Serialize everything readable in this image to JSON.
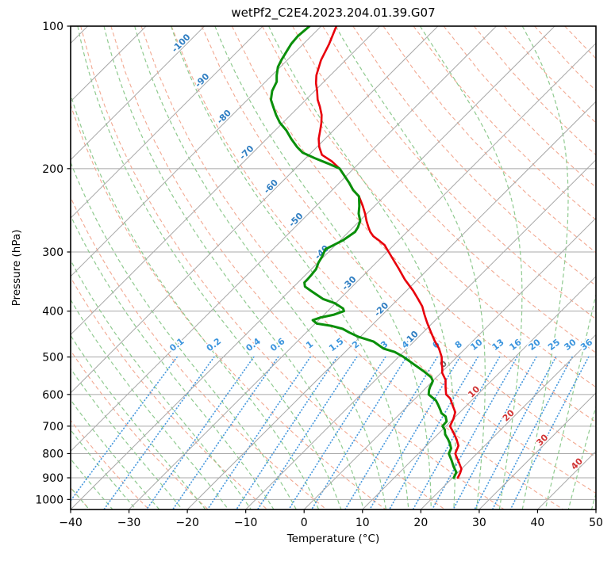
{
  "title": "wetPf2_C2E4.2023.204.01.39.G07",
  "axes": {
    "x": {
      "label": "Temperature (°C)",
      "ticks": [
        -40,
        -30,
        -20,
        -10,
        0,
        10,
        20,
        30,
        40,
        50
      ],
      "min": -40,
      "max": 50
    },
    "y": {
      "label": "Pressure (hPa)",
      "ticks": [
        100,
        200,
        300,
        400,
        500,
        600,
        700,
        800,
        900,
        1000
      ],
      "min": 100,
      "max": 1050,
      "scale": "log"
    }
  },
  "colors": {
    "frame": "#000000",
    "grid": "#a8a8a8",
    "isotherm": "#a8a8a8",
    "dry_adiabat": "#f2a891",
    "moist_adiabat": "#8fca8f",
    "mixing_line": "#4a9ade",
    "temperature": "#e8000b",
    "dewpoint": "#0a8f0a",
    "isotherm_label_neg": "#2f7ec2",
    "isotherm_label_zero": "#6f6f6f",
    "isotherm_label_pos": "#d03434",
    "mixing_label": "#3c95dd"
  },
  "chart_data": {
    "type": "line",
    "subtype": "skewT-logP",
    "title": "wetPf2_C2E4.2023.204.01.39.G07",
    "xlabel": "Temperature (°C)",
    "ylabel": "Pressure (hPa)",
    "xlim": [
      -40,
      50
    ],
    "ylim": [
      1050,
      100
    ],
    "skew_deg": 45,
    "series": [
      {
        "name": "temperature",
        "units": [
          "hPa",
          "degC"
        ],
        "points": [
          [
            100,
            -77.4
          ],
          [
            109,
            -75.6
          ],
          [
            118,
            -74.2
          ],
          [
            127,
            -72.4
          ],
          [
            132,
            -71.1
          ],
          [
            137,
            -69.6
          ],
          [
            143,
            -68.0
          ],
          [
            148,
            -66.4
          ],
          [
            154,
            -64.7
          ],
          [
            160,
            -63.4
          ],
          [
            166,
            -62.3
          ],
          [
            173,
            -61.1
          ],
          [
            180,
            -59.6
          ],
          [
            187,
            -57.8
          ],
          [
            193,
            -55.0
          ],
          [
            200,
            -52.4
          ],
          [
            214,
            -48.4
          ],
          [
            222,
            -46.4
          ],
          [
            229,
            -44.3
          ],
          [
            240,
            -42.0
          ],
          [
            249,
            -40.3
          ],
          [
            258,
            -38.8
          ],
          [
            266,
            -37.4
          ],
          [
            272,
            -36.3
          ],
          [
            278,
            -35.0
          ],
          [
            283,
            -33.5
          ],
          [
            290,
            -31.6
          ],
          [
            300,
            -29.7
          ],
          [
            313,
            -27.3
          ],
          [
            326,
            -25.0
          ],
          [
            343,
            -22.2
          ],
          [
            362,
            -18.9
          ],
          [
            377,
            -16.6
          ],
          [
            391,
            -14.6
          ],
          [
            407,
            -12.8
          ],
          [
            423,
            -11.0
          ],
          [
            444,
            -8.6
          ],
          [
            462,
            -6.6
          ],
          [
            480,
            -4.5
          ],
          [
            500,
            -2.6
          ],
          [
            517,
            -1.4
          ],
          [
            529,
            -0.5
          ],
          [
            540,
            0.2
          ],
          [
            559,
            2.0
          ],
          [
            580,
            3.3
          ],
          [
            600,
            4.6
          ],
          [
            612,
            6.0
          ],
          [
            633,
            7.6
          ],
          [
            654,
            9.2
          ],
          [
            675,
            10.0
          ],
          [
            700,
            10.7
          ],
          [
            721,
            12.3
          ],
          [
            745,
            14.0
          ],
          [
            770,
            15.5
          ],
          [
            800,
            16.3
          ],
          [
            818,
            17.4
          ],
          [
            836,
            18.5
          ],
          [
            862,
            20.0
          ],
          [
            880,
            20.5
          ],
          [
            900,
            20.9
          ]
        ]
      },
      {
        "name": "dewpoint",
        "units": [
          "hPa",
          "degC"
        ],
        "points": [
          [
            100,
            -82.0
          ],
          [
            105,
            -82.3
          ],
          [
            109,
            -82.1
          ],
          [
            113,
            -81.6
          ],
          [
            118,
            -81.0
          ],
          [
            122,
            -80.4
          ],
          [
            127,
            -79.2
          ],
          [
            131,
            -78.1
          ],
          [
            137,
            -77.3
          ],
          [
            143,
            -76.0
          ],
          [
            148,
            -74.4
          ],
          [
            154,
            -72.5
          ],
          [
            160,
            -70.5
          ],
          [
            166,
            -68.1
          ],
          [
            173,
            -65.8
          ],
          [
            180,
            -63.4
          ],
          [
            185,
            -61.5
          ],
          [
            190,
            -58.5
          ],
          [
            195,
            -55.3
          ],
          [
            200,
            -52.4
          ],
          [
            214,
            -48.4
          ],
          [
            222,
            -46.4
          ],
          [
            229,
            -44.3
          ],
          [
            240,
            -42.6
          ],
          [
            249,
            -41.4
          ],
          [
            258,
            -39.9
          ],
          [
            266,
            -39.2
          ],
          [
            272,
            -38.9
          ],
          [
            283,
            -39.5
          ],
          [
            290,
            -40.3
          ],
          [
            296,
            -41.0
          ],
          [
            307,
            -40.3
          ],
          [
            316,
            -39.9
          ],
          [
            326,
            -39.2
          ],
          [
            335,
            -39.0
          ],
          [
            343,
            -38.9
          ],
          [
            348,
            -38.9
          ],
          [
            355,
            -38.1
          ],
          [
            363,
            -36.2
          ],
          [
            377,
            -32.9
          ],
          [
            385,
            -30.1
          ],
          [
            395,
            -27.8
          ],
          [
            400,
            -27.2
          ],
          [
            407,
            -28.3
          ],
          [
            413,
            -30.2
          ],
          [
            418,
            -31.0
          ],
          [
            425,
            -29.7
          ],
          [
            430,
            -26.7
          ],
          [
            436,
            -24.4
          ],
          [
            444,
            -22.6
          ],
          [
            453,
            -20.4
          ],
          [
            464,
            -16.9
          ],
          [
            480,
            -14.0
          ],
          [
            488,
            -11.5
          ],
          [
            499,
            -9.3
          ],
          [
            517,
            -6.3
          ],
          [
            536,
            -3.2
          ],
          [
            552,
            -0.9
          ],
          [
            562,
            0.0
          ],
          [
            570,
            0.3
          ],
          [
            577,
            0.5
          ],
          [
            587,
            0.9
          ],
          [
            600,
            1.6
          ],
          [
            618,
            3.9
          ],
          [
            631,
            5.0
          ],
          [
            646,
            6.2
          ],
          [
            657,
            7.0
          ],
          [
            668,
            8.3
          ],
          [
            684,
            9.3
          ],
          [
            700,
            9.4
          ],
          [
            712,
            10.4
          ],
          [
            729,
            11.3
          ],
          [
            746,
            12.6
          ],
          [
            761,
            13.6
          ],
          [
            780,
            14.7
          ],
          [
            800,
            15.2
          ],
          [
            826,
            16.8
          ],
          [
            853,
            18.3
          ],
          [
            876,
            19.7
          ],
          [
            900,
            20.2
          ]
        ]
      }
    ],
    "background": {
      "isotherms": {
        "start": -150,
        "end": 50,
        "step": 10
      },
      "dry_adiabats": {
        "theta_start": -40,
        "theta_end": 190,
        "step": 10
      },
      "moist_adiabats": {
        "t0_start": -40,
        "t0_end": 48,
        "step": 4
      },
      "mixing_ratio_lines": {
        "values": [
          0.1,
          0.2,
          0.4,
          0.6,
          1,
          1.5,
          2,
          3,
          4,
          6,
          8,
          10,
          13,
          16,
          20,
          25,
          30,
          36
        ]
      }
    },
    "isotherm_labels": [
      {
        "text": "-100",
        "value": -100
      },
      {
        "text": "-90",
        "value": -90
      },
      {
        "text": "-80",
        "value": -80
      },
      {
        "text": "-70",
        "value": -70
      },
      {
        "text": "-60",
        "value": -60
      },
      {
        "text": "-50",
        "value": -50
      },
      {
        "text": "-40",
        "value": -40
      },
      {
        "text": "-30",
        "value": -30
      },
      {
        "text": "-20",
        "value": -20
      },
      {
        "text": "-10",
        "value": -10
      },
      {
        "text": "0",
        "value": 0
      },
      {
        "text": "10",
        "value": 10
      },
      {
        "text": "20",
        "value": 20
      },
      {
        "text": "30",
        "value": 30
      },
      {
        "text": "40",
        "value": 40
      }
    ],
    "mixing_ratio_labels": [
      "0.1",
      "0.2",
      "0.4",
      "0.6",
      "1",
      "1.5",
      "2",
      "3",
      "4",
      "6",
      "8",
      "10",
      "13",
      "16",
      "20",
      "25",
      "30",
      "36"
    ]
  }
}
